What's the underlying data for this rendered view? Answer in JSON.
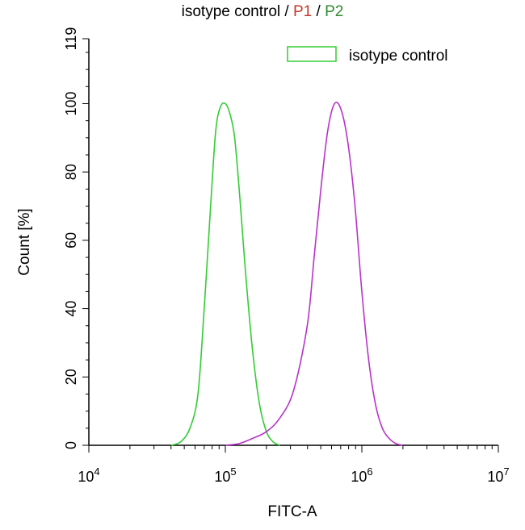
{
  "title": {
    "parts": [
      {
        "text": "isotype control",
        "color": "#000000"
      },
      {
        "text": " / ",
        "color": "#000000"
      },
      {
        "text": "P1",
        "color": "#c0392b"
      },
      {
        "text": " / ",
        "color": "#000000"
      },
      {
        "text": "P2",
        "color": "#2e8b2e"
      }
    ]
  },
  "chart_data": {
    "type": "line",
    "title": "isotype control / P1 / P2",
    "xlabel": "FITC-A",
    "ylabel": "Count [%]",
    "xscale": "log",
    "xlim": [
      10000,
      10000000
    ],
    "ylim": [
      0,
      119
    ],
    "yticks": [
      0,
      20,
      40,
      60,
      80,
      100,
      119
    ],
    "xticks": [
      {
        "value": 10000,
        "base": "10",
        "exp": "4"
      },
      {
        "value": 100000,
        "base": "10",
        "exp": "5"
      },
      {
        "value": 1000000,
        "base": "10",
        "exp": "6"
      },
      {
        "value": 10000000,
        "base": "10",
        "exp": "7"
      }
    ],
    "legend": {
      "position": "top-right",
      "entries": [
        "isotype control"
      ]
    },
    "grid": false,
    "series": [
      {
        "name": "isotype control",
        "color": "#33cc33",
        "x": [
          40000,
          47000,
          55000,
          63000,
          70000,
          78000,
          85000,
          92000,
          100000,
          108000,
          117000,
          128000,
          141000,
          158000,
          178000,
          200000,
          224000,
          251000
        ],
        "y": [
          0,
          1,
          5,
          15,
          40,
          70,
          92,
          99,
          100,
          97,
          90,
          72,
          50,
          28,
          12,
          4,
          1,
          0
        ]
      },
      {
        "color": "#b833c9",
        "x": [
          100000,
          126000,
          158000,
          200000,
          251000,
          316000,
          398000,
          447000,
          501000,
          562000,
          631000,
          708000,
          794000,
          891000,
          1000000,
          1122000,
          1259000,
          1413000,
          1585000,
          1778000,
          1995000
        ],
        "y": [
          0,
          0.5,
          2,
          4,
          8,
          16,
          35,
          55,
          75,
          92,
          100,
          98,
          88,
          70,
          45,
          25,
          12,
          5,
          2,
          0.5,
          0
        ]
      }
    ]
  }
}
